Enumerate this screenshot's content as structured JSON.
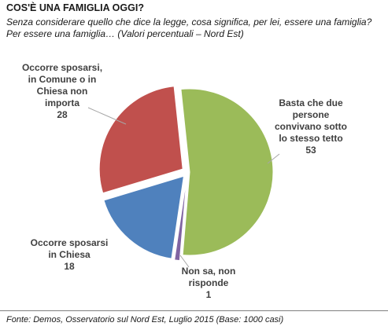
{
  "header": {
    "title": "COS'È UNA FAMIGLIA  OGGI?",
    "subtitle": "Senza considerare quello che dice la legge, cosa significa, per lei, essere una famiglia? Per essere una famiglia… (Valori percentuali – Nord Est)"
  },
  "footer": {
    "source": "Fonte: Demos, Osservatorio sul Nord Est, Luglio 2015 (Base: 1000 casi)"
  },
  "chart_data": {
    "type": "pie",
    "title": "COS'È UNA FAMIGLIA  OGGI?",
    "unit": "%",
    "slices": [
      {
        "label": [
          "Basta che due",
          "persone",
          "convivano sotto",
          "lo stesso tetto"
        ],
        "value": 53,
        "color": "#9bbb59"
      },
      {
        "label": [
          "Non sa, non",
          "risponde"
        ],
        "value": 1,
        "color": "#8064a2"
      },
      {
        "label": [
          "Occorre sposarsi",
          "in Chiesa"
        ],
        "value": 18,
        "color": "#4f81bd"
      },
      {
        "label": [
          "Occorre sposarsi,",
          "in Comune o in",
          "Chiesa non",
          "importa"
        ],
        "value": 28,
        "color": "#c0504d"
      }
    ],
    "legend": "none"
  }
}
